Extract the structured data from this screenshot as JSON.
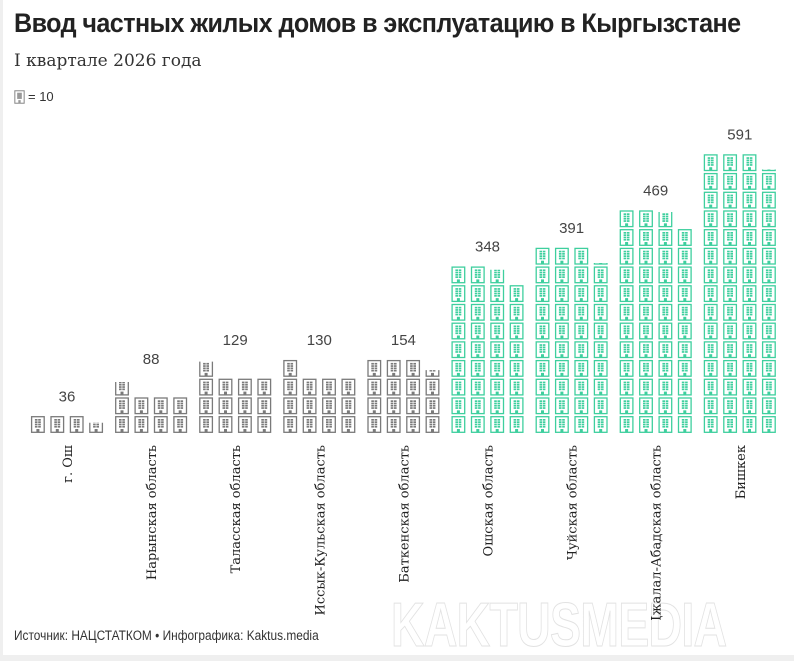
{
  "title": "Ввод частных жилых домов в эксплуатацию в Кыргызстане",
  "subtitle": "I квартале 2026 года",
  "legend": {
    "icon": "building-icon",
    "value_label": "= 10"
  },
  "source": "Источник: НАЦСТАТКОМ • Инфографика: Kaktus.media",
  "watermark": "KAKTUSMEDIA",
  "colors": {
    "gray": "#7a7a7a",
    "green": "#3ecf9e"
  },
  "chart_data": {
    "type": "pictogram",
    "unit_per_icon": 10,
    "icons_per_row": 4,
    "categories": [
      "г. Ош",
      "Нарынская область",
      "Таласская область",
      "Иссык-Кульская область",
      "Баткенская область",
      "Ошская область",
      "Чуйская область",
      "Джалал-Абадская область",
      "Бишкек"
    ],
    "values": [
      36,
      88,
      129,
      130,
      154,
      348,
      391,
      469,
      591
    ],
    "highlight": [
      false,
      false,
      false,
      false,
      false,
      true,
      true,
      true,
      true
    ]
  }
}
